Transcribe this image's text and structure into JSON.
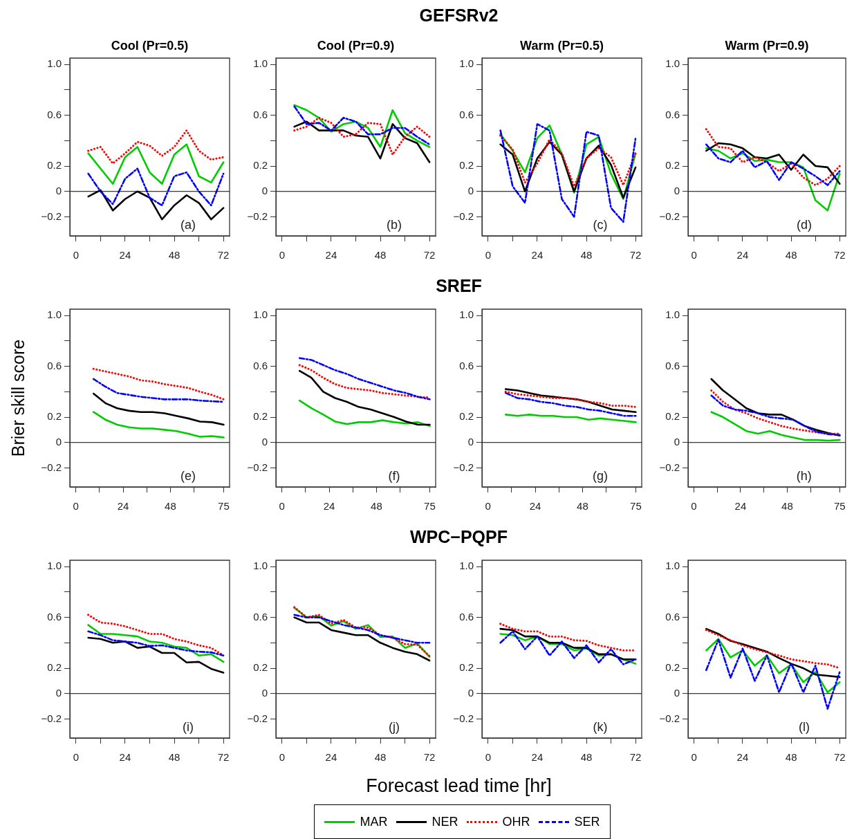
{
  "chart_data": [
    {
      "type": "other",
      "title": "GEFSRv2"
    },
    {
      "type": "line",
      "legend": "bottom",
      "title": "Cool (Pr=0.5)",
      "x": [
        6,
        12,
        18,
        24,
        30,
        36,
        42,
        48,
        54,
        60,
        66,
        72
      ],
      "xlim": [
        -3,
        75
      ],
      "ylim": [
        -0.35,
        1.05
      ],
      "xticks": [
        0,
        {
          "value": 12,
          "label": null
        },
        24,
        {
          "value": 36,
          "label": null
        },
        48,
        {
          "value": 60,
          "label": null
        },
        72
      ],
      "yticks": [
        {
          "value": 1,
          "label": "1.0"
        },
        {
          "value": 0.8,
          "label": null
        },
        0.6,
        {
          "value": 0.4,
          "label": null
        },
        0.2,
        0,
        {
          "value": -0.2,
          "label": "−0.2"
        }
      ],
      "marker": "none",
      "ref_lines": [
        {
          "axis": "y",
          "value": 0,
          "color": "#000000"
        }
      ],
      "annotations": [
        "(a)"
      ],
      "series": [
        {
          "name": "MAR",
          "color": "#00cc00",
          "line_style": "solid",
          "values": [
            0.3,
            0.18,
            0.06,
            0.27,
            0.35,
            0.15,
            0.06,
            0.29,
            0.37,
            0.12,
            0.07,
            0.23
          ]
        },
        {
          "name": "NER",
          "color": "#000000",
          "line_style": "solid",
          "values": [
            -0.04,
            0.01,
            -0.15,
            -0.06,
            0.0,
            -0.05,
            -0.22,
            -0.11,
            -0.03,
            -0.09,
            -0.22,
            -0.13
          ]
        },
        {
          "name": "OHR",
          "color": "#ff0000",
          "line_style": "dotted",
          "values": [
            0.32,
            0.35,
            0.22,
            0.3,
            0.39,
            0.36,
            0.28,
            0.35,
            0.48,
            0.32,
            0.25,
            0.27
          ]
        },
        {
          "name": "SER",
          "color": "#0000ff",
          "line_style": "dashed",
          "values": [
            0.14,
            0.0,
            -0.1,
            0.1,
            0.18,
            -0.05,
            -0.11,
            0.12,
            0.15,
            0.0,
            -0.11,
            0.14
          ]
        }
      ]
    },
    {
      "type": "line",
      "legend": "bottom",
      "title": "Cool (Pr=0.9)",
      "x": [
        6,
        12,
        18,
        24,
        30,
        36,
        42,
        48,
        54,
        60,
        66,
        72
      ],
      "xlim": [
        -3,
        75
      ],
      "ylim": [
        -0.35,
        1.05
      ],
      "xticks": [
        0,
        {
          "value": 12,
          "label": null
        },
        24,
        {
          "value": 36,
          "label": null
        },
        48,
        {
          "value": 60,
          "label": null
        },
        72
      ],
      "yticks": [
        {
          "value": 1,
          "label": "1.0"
        },
        {
          "value": 0.8,
          "label": null
        },
        0.6,
        {
          "value": 0.4,
          "label": null
        },
        0.2,
        0,
        {
          "value": -0.2,
          "label": "−0.2"
        }
      ],
      "marker": "none",
      "ref_lines": [
        {
          "axis": "y",
          "value": 0,
          "color": "#000000"
        }
      ],
      "annotations": [
        "(b)"
      ],
      "series": [
        {
          "name": "MAR",
          "color": "#00cc00",
          "line_style": "solid",
          "values": [
            0.68,
            0.64,
            0.58,
            0.47,
            0.53,
            0.55,
            0.5,
            0.35,
            0.64,
            0.46,
            0.4,
            0.35
          ]
        },
        {
          "name": "NER",
          "color": "#000000",
          "line_style": "solid",
          "values": [
            0.51,
            0.55,
            0.48,
            0.48,
            0.48,
            0.44,
            0.43,
            0.26,
            0.53,
            0.42,
            0.38,
            0.23
          ]
        },
        {
          "name": "OHR",
          "color": "#ff0000",
          "line_style": "dotted",
          "values": [
            0.48,
            0.51,
            0.58,
            0.54,
            0.43,
            0.45,
            0.54,
            0.53,
            0.29,
            0.43,
            0.51,
            0.43
          ]
        },
        {
          "name": "SER",
          "color": "#0000ff",
          "line_style": "dashed",
          "values": [
            0.67,
            0.53,
            0.54,
            0.48,
            0.58,
            0.55,
            0.45,
            0.45,
            0.5,
            0.5,
            0.43,
            0.37
          ]
        }
      ]
    },
    {
      "type": "line",
      "legend": "bottom",
      "title": "Warm (Pr=0.5)",
      "x": [
        6,
        12,
        18,
        24,
        30,
        36,
        42,
        48,
        54,
        60,
        66,
        72
      ],
      "xlim": [
        -3,
        75
      ],
      "ylim": [
        -0.35,
        1.05
      ],
      "xticks": [
        0,
        {
          "value": 12,
          "label": null
        },
        24,
        {
          "value": 36,
          "label": null
        },
        48,
        {
          "value": 60,
          "label": null
        },
        72
      ],
      "yticks": [
        {
          "value": 1,
          "label": "1.0"
        },
        {
          "value": 0.8,
          "label": null
        },
        0.6,
        {
          "value": 0.4,
          "label": null
        },
        0.2,
        0,
        {
          "value": -0.2,
          "label": "−0.2"
        }
      ],
      "marker": "none",
      "ref_lines": [
        {
          "axis": "y",
          "value": 0,
          "color": "#000000"
        }
      ],
      "annotations": [
        "(c)"
      ],
      "series": [
        {
          "name": "MAR",
          "color": "#00cc00",
          "line_style": "solid",
          "values": [
            0.45,
            0.32,
            0.15,
            0.42,
            0.52,
            0.29,
            -0.01,
            0.37,
            0.43,
            0.14,
            -0.06,
            0.3
          ]
        },
        {
          "name": "NER",
          "color": "#000000",
          "line_style": "solid",
          "values": [
            0.37,
            0.29,
            0.0,
            0.26,
            0.39,
            0.29,
            0.0,
            0.26,
            0.36,
            0.21,
            -0.05,
            0.19
          ]
        },
        {
          "name": "OHR",
          "color": "#ff0000",
          "line_style": "dotted",
          "values": [
            0.44,
            0.33,
            0.07,
            0.22,
            0.41,
            0.3,
            0.04,
            0.26,
            0.34,
            0.27,
            0.05,
            0.3
          ]
        },
        {
          "name": "SER",
          "color": "#0000ff",
          "line_style": "dashed",
          "values": [
            0.48,
            0.04,
            -0.09,
            0.53,
            0.48,
            -0.06,
            -0.2,
            0.47,
            0.44,
            -0.13,
            -0.24,
            0.42
          ]
        }
      ]
    },
    {
      "type": "line",
      "legend": "bottom",
      "title": "Warm (Pr=0.9)",
      "x": [
        6,
        12,
        18,
        24,
        30,
        36,
        42,
        48,
        54,
        60,
        66,
        72
      ],
      "xlim": [
        -3,
        75
      ],
      "ylim": [
        -0.35,
        1.05
      ],
      "xticks": [
        0,
        {
          "value": 12,
          "label": null
        },
        24,
        {
          "value": 36,
          "label": null
        },
        48,
        {
          "value": 60,
          "label": null
        },
        72
      ],
      "yticks": [
        {
          "value": 1,
          "label": "1.0"
        },
        {
          "value": 0.8,
          "label": null
        },
        0.6,
        {
          "value": 0.4,
          "label": null
        },
        0.2,
        0,
        {
          "value": -0.2,
          "label": "−0.2"
        }
      ],
      "marker": "none",
      "ref_lines": [
        {
          "axis": "y",
          "value": 0,
          "color": "#000000"
        }
      ],
      "annotations": [
        "(d)"
      ],
      "series": [
        {
          "name": "MAR",
          "color": "#00cc00",
          "line_style": "solid",
          "values": [
            0.34,
            0.32,
            0.26,
            0.3,
            0.24,
            0.25,
            0.23,
            0.23,
            0.19,
            -0.07,
            -0.15,
            0.14
          ]
        },
        {
          "name": "NER",
          "color": "#000000",
          "line_style": "solid",
          "values": [
            0.32,
            0.38,
            0.37,
            0.34,
            0.27,
            0.26,
            0.29,
            0.17,
            0.29,
            0.2,
            0.19,
            0.06
          ]
        },
        {
          "name": "OHR",
          "color": "#ff0000",
          "line_style": "dotted",
          "values": [
            0.49,
            0.35,
            0.34,
            0.23,
            0.27,
            0.23,
            0.16,
            0.22,
            0.11,
            0.05,
            0.1,
            0.2
          ]
        },
        {
          "name": "SER",
          "color": "#0000ff",
          "line_style": "dashed",
          "values": [
            0.37,
            0.26,
            0.23,
            0.32,
            0.19,
            0.24,
            0.09,
            0.23,
            0.18,
            0.12,
            0.05,
            0.16
          ]
        }
      ]
    },
    {
      "type": "other",
      "title": "SREF"
    },
    {
      "type": "line",
      "legend": "bottom",
      "ylabel": "Brier skill score",
      "x": [
        9,
        15,
        21,
        27,
        33,
        39,
        45,
        51,
        57,
        63,
        69,
        75
      ],
      "xlim": [
        -3,
        78
      ],
      "ylim": [
        -0.35,
        1.05
      ],
      "xticks": [
        0,
        {
          "value": 12,
          "label": null
        },
        24,
        {
          "value": 36,
          "label": null
        },
        48,
        {
          "value": 60,
          "label": null
        },
        75
      ],
      "yticks": [
        {
          "value": 1,
          "label": "1.0"
        },
        {
          "value": 0.8,
          "label": null
        },
        0.6,
        {
          "value": 0.4,
          "label": null
        },
        0.2,
        0,
        {
          "value": -0.2,
          "label": "−0.2"
        }
      ],
      "marker": "none",
      "ref_lines": [
        {
          "axis": "y",
          "value": 0,
          "color": "#000000"
        }
      ],
      "annotations": [
        "(e)"
      ],
      "series": [
        {
          "name": "MAR",
          "color": "#00cc00",
          "line_style": "solid",
          "values": [
            0.24,
            0.18,
            0.14,
            0.12,
            0.11,
            0.11,
            0.1,
            0.09,
            0.07,
            0.045,
            0.05,
            0.04
          ]
        },
        {
          "name": "NER",
          "color": "#000000",
          "line_style": "solid",
          "values": [
            0.385,
            0.31,
            0.27,
            0.25,
            0.24,
            0.24,
            0.23,
            0.21,
            0.19,
            0.165,
            0.16,
            0.14
          ]
        },
        {
          "name": "OHR",
          "color": "#ff0000",
          "line_style": "dotted",
          "values": [
            0.58,
            0.56,
            0.54,
            0.52,
            0.49,
            0.48,
            0.46,
            0.445,
            0.43,
            0.4,
            0.375,
            0.34
          ]
        },
        {
          "name": "SER",
          "color": "#0000ff",
          "line_style": "dashed",
          "values": [
            0.5,
            0.44,
            0.39,
            0.375,
            0.36,
            0.35,
            0.34,
            0.34,
            0.34,
            0.33,
            0.325,
            0.32
          ]
        }
      ]
    },
    {
      "type": "line",
      "x": [
        9,
        15,
        21,
        27,
        33,
        39,
        45,
        51,
        57,
        63,
        69,
        75
      ],
      "xlim": [
        -3,
        78
      ],
      "ylim": [
        -0.35,
        1.05
      ],
      "xticks": [
        0,
        {
          "value": 12,
          "label": null
        },
        24,
        {
          "value": 36,
          "label": null
        },
        48,
        {
          "value": 60,
          "label": null
        },
        75
      ],
      "yticks": [
        {
          "value": 1,
          "label": "1.0"
        },
        {
          "value": 0.8,
          "label": null
        },
        0.6,
        {
          "value": 0.4,
          "label": null
        },
        0.2,
        0,
        {
          "value": -0.2,
          "label": "−0.2"
        }
      ],
      "marker": "none",
      "ref_lines": [
        {
          "axis": "y",
          "value": 0,
          "color": "#000000"
        }
      ],
      "legend": "bottom",
      "annotations": [
        "(f)"
      ],
      "series": [
        {
          "name": "MAR",
          "color": "#00cc00",
          "line_style": "solid",
          "values": [
            0.33,
            0.27,
            0.22,
            0.165,
            0.145,
            0.16,
            0.16,
            0.175,
            0.16,
            0.15,
            0.16,
            0.13
          ]
        },
        {
          "name": "NER",
          "color": "#000000",
          "line_style": "solid",
          "values": [
            0.565,
            0.51,
            0.4,
            0.35,
            0.32,
            0.28,
            0.26,
            0.23,
            0.2,
            0.165,
            0.14,
            0.14
          ]
        },
        {
          "name": "OHR",
          "color": "#ff0000",
          "line_style": "dotted",
          "values": [
            0.61,
            0.57,
            0.51,
            0.46,
            0.43,
            0.42,
            0.41,
            0.39,
            0.38,
            0.37,
            0.36,
            0.355
          ]
        },
        {
          "name": "SER",
          "color": "#0000ff",
          "line_style": "dashed",
          "values": [
            0.665,
            0.65,
            0.61,
            0.57,
            0.54,
            0.5,
            0.47,
            0.44,
            0.41,
            0.39,
            0.36,
            0.34
          ]
        }
      ]
    },
    {
      "type": "line",
      "x": [
        9,
        15,
        21,
        27,
        33,
        39,
        45,
        51,
        57,
        63,
        69,
        75
      ],
      "xlim": [
        -3,
        78
      ],
      "ylim": [
        -0.35,
        1.05
      ],
      "xticks": [
        0,
        {
          "value": 12,
          "label": null
        },
        24,
        {
          "value": 36,
          "label": null
        },
        48,
        {
          "value": 60,
          "label": null
        },
        75
      ],
      "yticks": [
        {
          "value": 1,
          "label": "1.0"
        },
        {
          "value": 0.8,
          "label": null
        },
        0.6,
        {
          "value": 0.4,
          "label": null
        },
        0.2,
        0,
        {
          "value": -0.2,
          "label": "−0.2"
        }
      ],
      "marker": "none",
      "ref_lines": [
        {
          "axis": "y",
          "value": 0,
          "color": "#000000"
        }
      ],
      "legend": "bottom",
      "annotations": [
        "(g)"
      ],
      "series": [
        {
          "name": "MAR",
          "color": "#00cc00",
          "line_style": "solid",
          "values": [
            0.22,
            0.21,
            0.22,
            0.21,
            0.21,
            0.2,
            0.2,
            0.18,
            0.19,
            0.18,
            0.17,
            0.16
          ]
        },
        {
          "name": "NER",
          "color": "#000000",
          "line_style": "solid",
          "values": [
            0.42,
            0.41,
            0.39,
            0.37,
            0.36,
            0.35,
            0.34,
            0.32,
            0.29,
            0.26,
            0.25,
            0.24
          ]
        },
        {
          "name": "OHR",
          "color": "#ff0000",
          "line_style": "dotted",
          "values": [
            0.4,
            0.38,
            0.37,
            0.36,
            0.35,
            0.35,
            0.34,
            0.32,
            0.31,
            0.29,
            0.29,
            0.28
          ]
        },
        {
          "name": "SER",
          "color": "#0000ff",
          "line_style": "dashed",
          "values": [
            0.39,
            0.35,
            0.34,
            0.32,
            0.31,
            0.29,
            0.28,
            0.26,
            0.25,
            0.23,
            0.21,
            0.21
          ]
        }
      ]
    },
    {
      "type": "line",
      "x": [
        9,
        15,
        21,
        27,
        33,
        39,
        45,
        51,
        57,
        63,
        69,
        75
      ],
      "xlim": [
        -3,
        78
      ],
      "ylim": [
        -0.35,
        1.05
      ],
      "xticks": [
        0,
        {
          "value": 12,
          "label": null
        },
        24,
        {
          "value": 36,
          "label": null
        },
        48,
        {
          "value": 60,
          "label": null
        },
        75
      ],
      "yticks": [
        {
          "value": 1,
          "label": "1.0"
        },
        {
          "value": 0.8,
          "label": null
        },
        0.6,
        {
          "value": 0.4,
          "label": null
        },
        0.2,
        0,
        {
          "value": -0.2,
          "label": "−0.2"
        }
      ],
      "marker": "none",
      "ref_lines": [
        {
          "axis": "y",
          "value": 0,
          "color": "#000000"
        }
      ],
      "legend": "bottom",
      "annotations": [
        "(h)"
      ],
      "series": [
        {
          "name": "MAR",
          "color": "#00cc00",
          "line_style": "solid",
          "values": [
            0.24,
            0.2,
            0.145,
            0.09,
            0.07,
            0.09,
            0.06,
            0.04,
            0.02,
            0.02,
            0.015,
            0.02
          ]
        },
        {
          "name": "NER",
          "color": "#000000",
          "line_style": "solid",
          "values": [
            0.5,
            0.41,
            0.34,
            0.27,
            0.23,
            0.22,
            0.22,
            0.18,
            0.13,
            0.1,
            0.075,
            0.055
          ]
        },
        {
          "name": "OHR",
          "color": "#ff0000",
          "line_style": "dotted",
          "values": [
            0.41,
            0.32,
            0.26,
            0.23,
            0.19,
            0.16,
            0.13,
            0.11,
            0.095,
            0.08,
            0.07,
            0.07
          ]
        },
        {
          "name": "SER",
          "color": "#0000ff",
          "line_style": "dashed",
          "values": [
            0.37,
            0.29,
            0.26,
            0.25,
            0.23,
            0.2,
            0.19,
            0.18,
            0.13,
            0.085,
            0.065,
            0.06
          ]
        }
      ]
    },
    {
      "type": "other",
      "title": "WPC−PQPF"
    },
    {
      "type": "line",
      "legend": "bottom",
      "x": [
        6,
        12,
        18,
        24,
        30,
        36,
        42,
        48,
        54,
        60,
        66,
        72
      ],
      "xlim": [
        -3,
        75
      ],
      "ylim": [
        -0.35,
        1.05
      ],
      "xticks": [
        0,
        {
          "value": 12,
          "label": null
        },
        24,
        {
          "value": 36,
          "label": null
        },
        48,
        {
          "value": 60,
          "label": null
        },
        72
      ],
      "yticks": [
        {
          "value": 1,
          "label": "1.0"
        },
        {
          "value": 0.8,
          "label": null
        },
        0.6,
        {
          "value": 0.4,
          "label": null
        },
        0.2,
        0,
        {
          "value": -0.2,
          "label": "−0.2"
        }
      ],
      "marker": "none",
      "ref_lines": [
        {
          "axis": "y",
          "value": 0,
          "color": "#000000"
        }
      ],
      "annotations": [
        "(i)"
      ],
      "series": [
        {
          "name": "MAR",
          "color": "#00cc00",
          "line_style": "solid",
          "values": [
            0.54,
            0.47,
            0.47,
            0.46,
            0.45,
            0.41,
            0.4,
            0.37,
            0.36,
            0.3,
            0.31,
            0.25
          ]
        },
        {
          "name": "NER",
          "color": "#000000",
          "line_style": "solid",
          "values": [
            0.44,
            0.43,
            0.4,
            0.41,
            0.36,
            0.37,
            0.32,
            0.32,
            0.245,
            0.25,
            0.195,
            0.165
          ]
        },
        {
          "name": "OHR",
          "color": "#ff0000",
          "line_style": "dotted",
          "values": [
            0.62,
            0.56,
            0.55,
            0.53,
            0.5,
            0.47,
            0.47,
            0.43,
            0.41,
            0.38,
            0.36,
            0.3
          ]
        },
        {
          "name": "SER",
          "color": "#0000ff",
          "line_style": "dashed",
          "values": [
            0.49,
            0.46,
            0.42,
            0.41,
            0.4,
            0.375,
            0.38,
            0.36,
            0.34,
            0.33,
            0.325,
            0.3
          ]
        }
      ]
    },
    {
      "type": "line",
      "legend": "bottom",
      "xlabel": "Forecast lead time [hr]",
      "x": [
        6,
        12,
        18,
        24,
        30,
        36,
        42,
        48,
        54,
        60,
        66,
        72
      ],
      "xlim": [
        -3,
        75
      ],
      "ylim": [
        -0.35,
        1.05
      ],
      "xticks": [
        0,
        {
          "value": 12,
          "label": null
        },
        24,
        {
          "value": 36,
          "label": null
        },
        48,
        {
          "value": 60,
          "label": null
        },
        72
      ],
      "yticks": [
        {
          "value": 1,
          "label": "1.0"
        },
        {
          "value": 0.8,
          "label": null
        },
        0.6,
        {
          "value": 0.4,
          "label": null
        },
        0.2,
        0,
        {
          "value": -0.2,
          "label": "−0.2"
        }
      ],
      "marker": "none",
      "ref_lines": [
        {
          "axis": "y",
          "value": 0,
          "color": "#000000"
        }
      ],
      "annotations": [
        "(j)"
      ],
      "series": [
        {
          "name": "MAR",
          "color": "#00cc00",
          "line_style": "solid",
          "values": [
            0.675,
            0.6,
            0.61,
            0.535,
            0.57,
            0.51,
            0.54,
            0.445,
            0.45,
            0.36,
            0.395,
            0.29
          ]
        },
        {
          "name": "NER",
          "color": "#000000",
          "line_style": "solid",
          "values": [
            0.6,
            0.56,
            0.56,
            0.5,
            0.48,
            0.46,
            0.46,
            0.4,
            0.36,
            0.33,
            0.31,
            0.26
          ]
        },
        {
          "name": "OHR",
          "color": "#ff0000",
          "line_style": "dotted",
          "values": [
            0.68,
            0.6,
            0.62,
            0.55,
            0.58,
            0.52,
            0.52,
            0.46,
            0.44,
            0.39,
            0.385,
            0.295
          ]
        },
        {
          "name": "SER",
          "color": "#0000ff",
          "line_style": "dashed",
          "values": [
            0.62,
            0.6,
            0.6,
            0.57,
            0.54,
            0.52,
            0.5,
            0.46,
            0.44,
            0.42,
            0.4,
            0.4
          ]
        }
      ]
    },
    {
      "type": "line",
      "x": [
        6,
        12,
        18,
        24,
        30,
        36,
        42,
        48,
        54,
        60,
        66,
        72
      ],
      "xlim": [
        -3,
        75
      ],
      "ylim": [
        -0.35,
        1.05
      ],
      "xticks": [
        0,
        {
          "value": 12,
          "label": null
        },
        24,
        {
          "value": 36,
          "label": null
        },
        48,
        {
          "value": 60,
          "label": null
        },
        72
      ],
      "yticks": [
        {
          "value": 1,
          "label": "1.0"
        },
        {
          "value": 0.8,
          "label": null
        },
        0.6,
        {
          "value": 0.4,
          "label": null
        },
        0.2,
        0,
        {
          "value": -0.2,
          "label": "−0.2"
        }
      ],
      "marker": "none",
      "ref_lines": [
        {
          "axis": "y",
          "value": 0,
          "color": "#000000"
        }
      ],
      "legend": "bottom",
      "annotations": [
        "(k)"
      ],
      "series": [
        {
          "name": "MAR",
          "color": "#00cc00",
          "line_style": "solid",
          "values": [
            0.47,
            0.46,
            0.42,
            0.45,
            0.39,
            0.39,
            0.34,
            0.355,
            0.3,
            0.31,
            0.27,
            0.235
          ]
        },
        {
          "name": "NER",
          "color": "#000000",
          "line_style": "solid",
          "values": [
            0.51,
            0.5,
            0.45,
            0.45,
            0.4,
            0.4,
            0.36,
            0.36,
            0.31,
            0.31,
            0.27,
            0.27
          ]
        },
        {
          "name": "OHR",
          "color": "#ff0000",
          "line_style": "dotted",
          "values": [
            0.55,
            0.51,
            0.49,
            0.49,
            0.45,
            0.45,
            0.42,
            0.415,
            0.38,
            0.36,
            0.34,
            0.34
          ]
        },
        {
          "name": "SER",
          "color": "#0000ff",
          "line_style": "dashed",
          "values": [
            0.4,
            0.49,
            0.35,
            0.45,
            0.3,
            0.41,
            0.28,
            0.38,
            0.245,
            0.35,
            0.23,
            0.27
          ]
        }
      ]
    },
    {
      "type": "line",
      "legend": "bottom",
      "x": [
        6,
        12,
        18,
        24,
        30,
        36,
        42,
        48,
        54,
        60,
        66,
        72
      ],
      "xlim": [
        -3,
        75
      ],
      "ylim": [
        -0.35,
        1.05
      ],
      "xticks": [
        0,
        {
          "value": 12,
          "label": null
        },
        24,
        {
          "value": 36,
          "label": null
        },
        48,
        {
          "value": 60,
          "label": null
        },
        72
      ],
      "yticks": [
        {
          "value": 1,
          "label": "1.0"
        },
        {
          "value": 0.8,
          "label": null
        },
        0.6,
        {
          "value": 0.4,
          "label": null
        },
        0.2,
        0,
        {
          "value": -0.2,
          "label": "−0.2"
        }
      ],
      "marker": "none",
      "ref_lines": [
        {
          "axis": "y",
          "value": 0,
          "color": "#000000"
        }
      ],
      "annotations": [
        "(l)"
      ],
      "series": [
        {
          "name": "MAR",
          "color": "#00cc00",
          "line_style": "solid",
          "values": [
            0.34,
            0.43,
            0.285,
            0.34,
            0.22,
            0.3,
            0.16,
            0.23,
            0.09,
            0.17,
            0.01,
            0.09
          ]
        },
        {
          "name": "NER",
          "color": "#000000",
          "line_style": "solid",
          "values": [
            0.51,
            0.47,
            0.415,
            0.39,
            0.36,
            0.33,
            0.28,
            0.235,
            0.2,
            0.15,
            0.14,
            0.13
          ]
        },
        {
          "name": "OHR",
          "color": "#ff0000",
          "line_style": "dotted",
          "values": [
            0.5,
            0.46,
            0.42,
            0.38,
            0.35,
            0.325,
            0.3,
            0.27,
            0.255,
            0.24,
            0.23,
            0.2
          ]
        },
        {
          "name": "SER",
          "color": "#0000ff",
          "line_style": "dashed",
          "values": [
            0.185,
            0.425,
            0.125,
            0.355,
            0.1,
            0.3,
            0.01,
            0.24,
            0.01,
            0.22,
            -0.12,
            0.17
          ]
        }
      ]
    }
  ]
}
